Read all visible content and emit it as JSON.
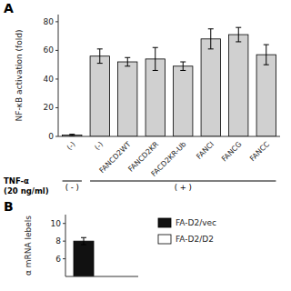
{
  "chart_data": [
    {
      "type": "bar",
      "title": "A",
      "categories": [
        "(-)",
        "(-)",
        "FANCD2WT",
        "FANCD2KR",
        "FACD2KR-Ub",
        "FANCI",
        "FANCG",
        "FANCC"
      ],
      "values": [
        1,
        56,
        52,
        54,
        49,
        68,
        71,
        57
      ],
      "errors": [
        0.5,
        5,
        3,
        8,
        3,
        7,
        5,
        7
      ],
      "color": "#d0d0d0",
      "y_label": "NF-κB activation (fold)",
      "ylim": [
        0,
        85
      ],
      "yticks": [
        0,
        20,
        40,
        60,
        80
      ],
      "group_labels": [
        {
          "text": "( - )",
          "start": 0,
          "end": 0
        },
        {
          "text": "( + )",
          "start": 1,
          "end": 7
        }
      ],
      "group_title": [
        "TNF-α",
        "(20 ng/ml)"
      ]
    },
    {
      "type": "bar",
      "title": "B",
      "categories": [
        null
      ],
      "series": [
        {
          "name": "FA-D2/vec",
          "color": "#111111",
          "values": [
            8.0
          ],
          "errors": [
            0.4
          ]
        },
        {
          "name": "FA-D2/D2",
          "color": "#ffffff",
          "values": [
            null
          ]
        }
      ],
      "y_label": "α mRNA lebels",
      "ylim": [
        4,
        11
      ],
      "yticks": [
        6,
        8,
        10
      ],
      "legend": "right"
    }
  ]
}
